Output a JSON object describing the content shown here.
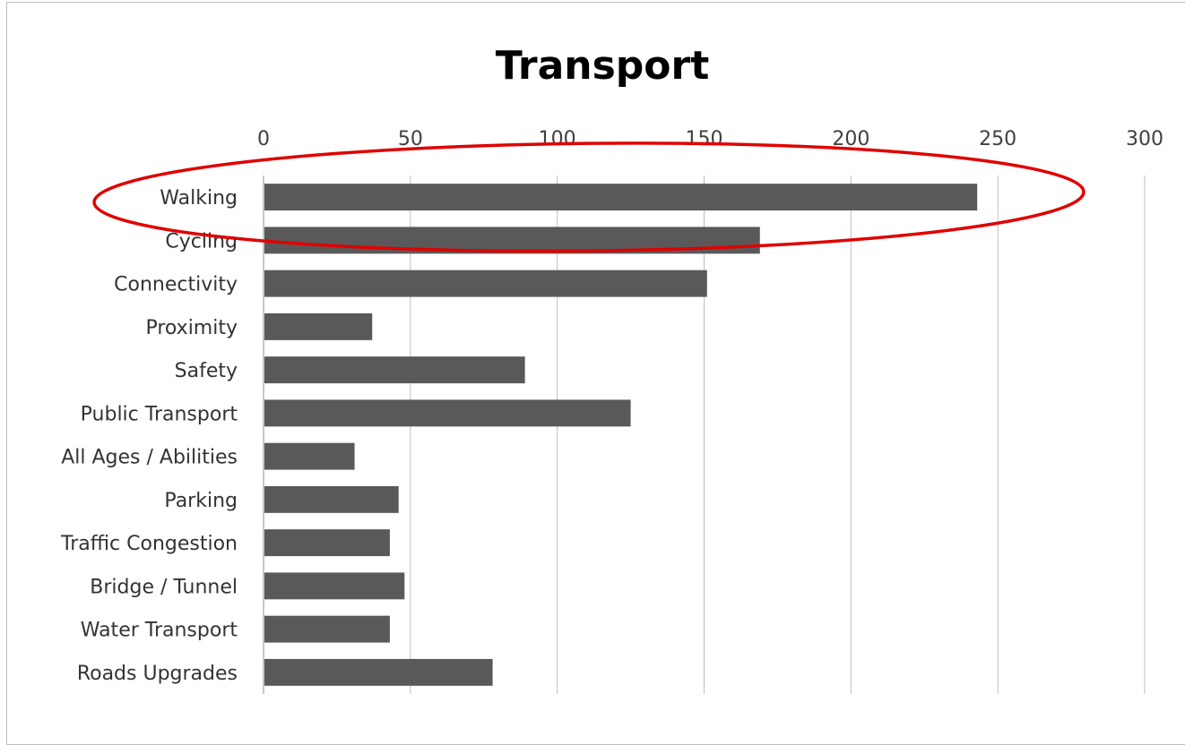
{
  "chart_data": {
    "type": "bar",
    "orientation": "horizontal",
    "title": "Transport",
    "xlabel": "",
    "ylabel": "",
    "xlim": [
      0,
      300
    ],
    "x_ticks": [
      0,
      50,
      100,
      150,
      200,
      250,
      300
    ],
    "x_axis_position": "top",
    "grid": true,
    "categories": [
      "Walking",
      "Cycling",
      "Connectivity",
      "Proximity",
      "Safety",
      "Public Transport",
      "All Ages / Abilities",
      "Parking",
      "Traffic Congestion",
      "Bridge / Tunnel",
      "Water Transport",
      "Roads Upgrades"
    ],
    "values": [
      243,
      169,
      151,
      37,
      89,
      125,
      31,
      46,
      43,
      48,
      43,
      78
    ],
    "bar_color": "#595959",
    "highlight": {
      "category": "Walking",
      "shape": "ellipse",
      "color": "#e00000"
    }
  }
}
